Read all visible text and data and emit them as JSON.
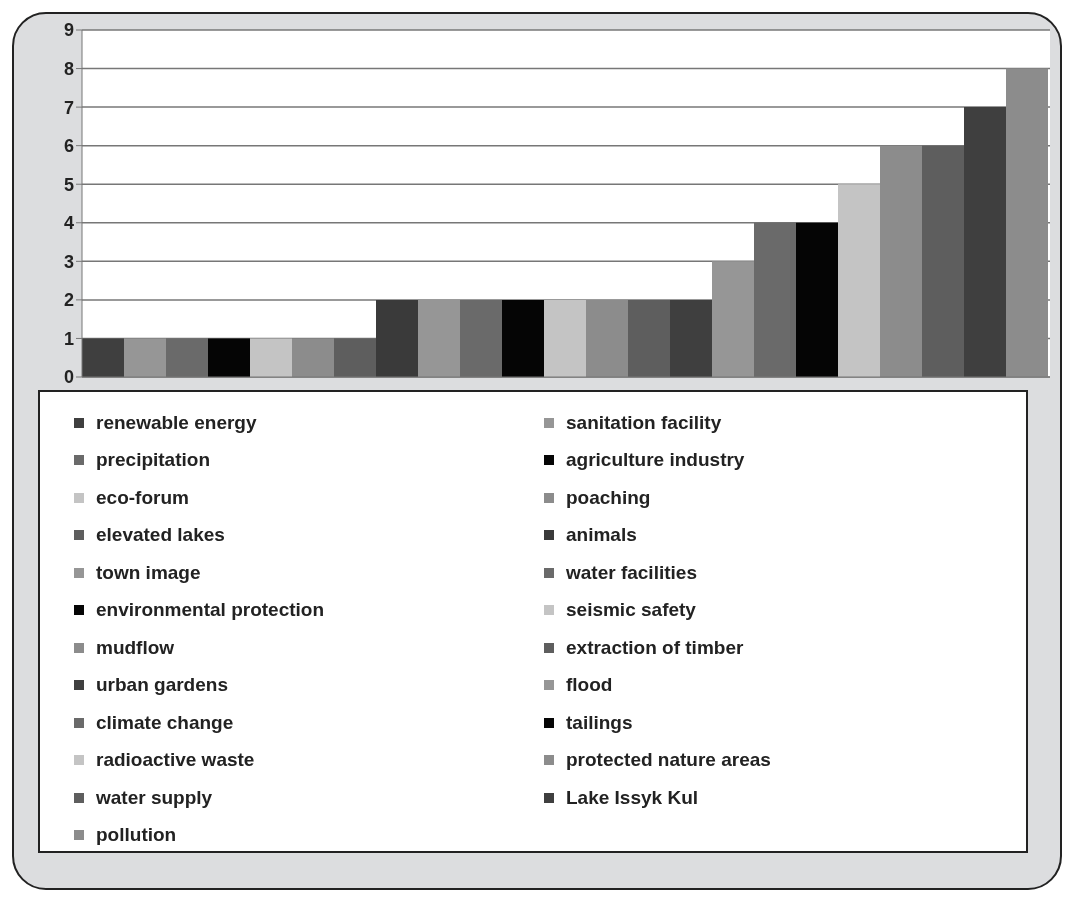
{
  "chart_data": {
    "type": "bar",
    "categories": [
      null
    ],
    "ylim": [
      0,
      9
    ],
    "yticks": [
      0,
      1,
      2,
      3,
      4,
      5,
      6,
      7,
      8,
      9
    ],
    "grid": "y",
    "legend": "bottom",
    "series": [
      {
        "name": "renewable energy",
        "color": "#3f3f3f",
        "values": [
          1
        ]
      },
      {
        "name": "sanitation facility",
        "color": "#969696",
        "values": [
          1
        ]
      },
      {
        "name": "precipitation",
        "color": "#6a6a6a",
        "values": [
          1
        ]
      },
      {
        "name": "agriculture industry",
        "color": "#050505",
        "values": [
          1
        ]
      },
      {
        "name": "eco-forum",
        "color": "#c4c4c4",
        "values": [
          1
        ]
      },
      {
        "name": "poaching",
        "color": "#8c8c8c",
        "values": [
          1
        ]
      },
      {
        "name": "elevated lakes",
        "color": "#5e5e5e",
        "values": [
          1
        ]
      },
      {
        "name": "animals",
        "color": "#3a3a3a",
        "values": [
          2
        ]
      },
      {
        "name": "town image",
        "color": "#969696",
        "values": [
          2
        ]
      },
      {
        "name": "water facilities",
        "color": "#6a6a6a",
        "values": [
          2
        ]
      },
      {
        "name": "environmental protection",
        "color": "#050505",
        "values": [
          2
        ]
      },
      {
        "name": "seismic safety",
        "color": "#c4c4c4",
        "values": [
          2
        ]
      },
      {
        "name": "mudflow",
        "color": "#8c8c8c",
        "values": [
          2
        ]
      },
      {
        "name": "extraction of timber",
        "color": "#5e5e5e",
        "values": [
          2
        ]
      },
      {
        "name": "urban gardens",
        "color": "#3f3f3f",
        "values": [
          2
        ]
      },
      {
        "name": "flood",
        "color": "#969696",
        "values": [
          3
        ]
      },
      {
        "name": "climate change",
        "color": "#6a6a6a",
        "values": [
          4
        ]
      },
      {
        "name": "tailings",
        "color": "#050505",
        "values": [
          4
        ]
      },
      {
        "name": "radioactive waste",
        "color": "#c4c4c4",
        "values": [
          5
        ]
      },
      {
        "name": "protected nature areas",
        "color": "#8c8c8c",
        "values": [
          6
        ]
      },
      {
        "name": "water supply",
        "color": "#5e5e5e",
        "values": [
          6
        ]
      },
      {
        "name": "Lake Issyk Kul",
        "color": "#3f3f3f",
        "values": [
          7
        ]
      },
      {
        "name": "pollution",
        "color": "#8c8c8c",
        "values": [
          8
        ]
      }
    ]
  }
}
